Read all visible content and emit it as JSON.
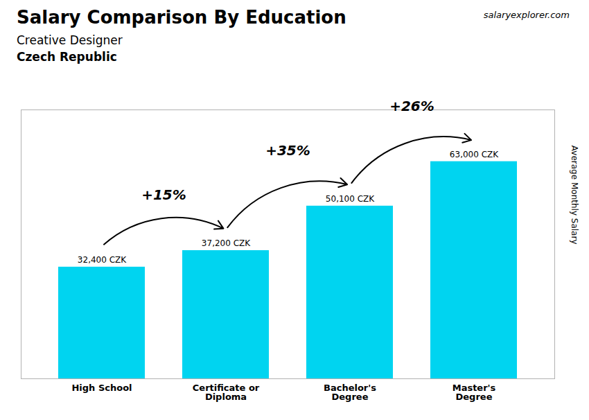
{
  "chart_data": {
    "type": "bar",
    "title": "Salary Comparison By Education",
    "subtitle": [
      "Creative Designer",
      "Czech Republic"
    ],
    "source": "salaryexplorer.com",
    "ylabel": "Average Monthly Salary",
    "categories": [
      "High School",
      "Certificate or\nDiploma",
      "Bachelor's\nDegree",
      "Master's\nDegree"
    ],
    "values": [
      32400,
      37200,
      50100,
      63000
    ],
    "value_labels": [
      "32,400 CZK",
      "37,200 CZK",
      "50,100 CZK",
      "63,000 CZK"
    ],
    "annotations": [
      "+15%",
      "+35%",
      "+26%"
    ],
    "color": "#00d4f0",
    "ylim": [
      0,
      78000
    ],
    "yticks": [],
    "grid": false,
    "data_labels": true,
    "tick_labels": "x"
  }
}
